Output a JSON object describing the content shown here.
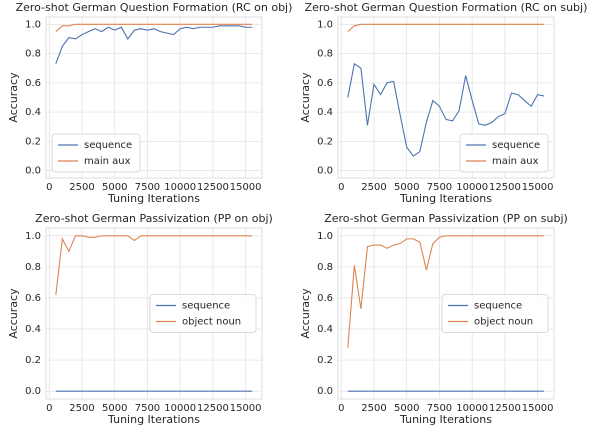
{
  "chart_data": [
    {
      "type": "line",
      "title": "Zero-shot German Question Formation (RC on obj)",
      "xlabel": "Tuning Iterations",
      "ylabel": "Accuracy",
      "x": [
        500,
        1000,
        1500,
        2000,
        2500,
        3000,
        3500,
        4000,
        4500,
        5000,
        5500,
        6000,
        6500,
        7000,
        7500,
        8000,
        8500,
        9000,
        9500,
        10000,
        10500,
        11000,
        11500,
        12000,
        12500,
        13000,
        13500,
        14000,
        14500,
        15000,
        15500
      ],
      "series": [
        {
          "name": "sequence",
          "color": "#4c72b0",
          "values": [
            0.73,
            0.85,
            0.91,
            0.9,
            0.93,
            0.95,
            0.97,
            0.95,
            0.98,
            0.96,
            0.98,
            0.9,
            0.96,
            0.97,
            0.96,
            0.97,
            0.95,
            0.94,
            0.93,
            0.97,
            0.98,
            0.97,
            0.98,
            0.98,
            0.98,
            0.99,
            0.99,
            0.99,
            0.99,
            0.98,
            0.98
          ]
        },
        {
          "name": "main aux",
          "color": "#dd8452",
          "values": [
            0.95,
            0.99,
            0.99,
            1.0,
            1.0,
            1.0,
            1.0,
            1.0,
            1.0,
            1.0,
            1.0,
            1.0,
            1.0,
            1.0,
            1.0,
            1.0,
            1.0,
            1.0,
            1.0,
            1.0,
            1.0,
            1.0,
            1.0,
            1.0,
            1.0,
            1.0,
            1.0,
            1.0,
            1.0,
            1.0,
            1.0
          ]
        }
      ],
      "xlim": [
        -250,
        16250
      ],
      "xticks": [
        0,
        2500,
        5000,
        7500,
        10000,
        12500,
        15000
      ],
      "ylim": [
        -0.05,
        1.05
      ],
      "yticks": [
        {
          "value": 0,
          "label": "0.0"
        },
        0.2,
        0.4,
        0.6,
        0.8,
        {
          "value": 1,
          "label": "1.0"
        }
      ],
      "grid": true,
      "legend": "lower left"
    },
    {
      "type": "line",
      "title": "Zero-shot German Question Formation (RC on subj)",
      "xlabel": "Tuning Iterations",
      "ylabel": "Accuracy",
      "x": [
        500,
        1000,
        1500,
        2000,
        2500,
        3000,
        3500,
        4000,
        4500,
        5000,
        5500,
        6000,
        6500,
        7000,
        7500,
        8000,
        8500,
        9000,
        9500,
        10000,
        10500,
        11000,
        11500,
        12000,
        12500,
        13000,
        13500,
        14000,
        14500,
        15000,
        15500
      ],
      "series": [
        {
          "name": "sequence",
          "color": "#4c72b0",
          "values": [
            0.5,
            0.73,
            0.7,
            0.31,
            0.59,
            0.52,
            0.6,
            0.61,
            0.38,
            0.16,
            0.1,
            0.13,
            0.33,
            0.48,
            0.44,
            0.35,
            0.34,
            0.41,
            0.65,
            0.48,
            0.32,
            0.31,
            0.33,
            0.37,
            0.39,
            0.53,
            0.52,
            0.48,
            0.44,
            0.52,
            0.51
          ]
        },
        {
          "name": "main aux",
          "color": "#dd8452",
          "values": [
            0.95,
            0.99,
            1.0,
            1.0,
            1.0,
            1.0,
            1.0,
            1.0,
            1.0,
            1.0,
            1.0,
            1.0,
            1.0,
            1.0,
            1.0,
            1.0,
            1.0,
            1.0,
            1.0,
            1.0,
            1.0,
            1.0,
            1.0,
            1.0,
            1.0,
            1.0,
            1.0,
            1.0,
            1.0,
            1.0,
            1.0
          ]
        }
      ],
      "xlim": [
        -250,
        16250
      ],
      "xticks": [
        0,
        2500,
        5000,
        7500,
        10000,
        12500,
        15000
      ],
      "ylim": [
        -0.05,
        1.05
      ],
      "yticks": [
        {
          "value": 0,
          "label": "0.0"
        },
        0.2,
        0.4,
        0.6,
        0.8,
        {
          "value": 1,
          "label": "1.0"
        }
      ],
      "grid": true,
      "legend": "lower right"
    },
    {
      "type": "line",
      "title": "Zero-shot German Passivization (PP on obj)",
      "xlabel": "Tuning Iterations",
      "ylabel": "Accuracy",
      "x": [
        500,
        1000,
        1500,
        2000,
        2500,
        3000,
        3500,
        4000,
        4500,
        5000,
        5500,
        6000,
        6500,
        7000,
        7500,
        8000,
        8500,
        9000,
        9500,
        10000,
        10500,
        11000,
        11500,
        12000,
        12500,
        13000,
        13500,
        14000,
        14500,
        15000,
        15500
      ],
      "series": [
        {
          "name": "sequence",
          "color": "#4c72b0",
          "values": [
            0,
            0,
            0,
            0,
            0,
            0,
            0,
            0,
            0,
            0,
            0,
            0,
            0,
            0,
            0,
            0,
            0,
            0,
            0,
            0,
            0,
            0,
            0,
            0,
            0,
            0,
            0,
            0,
            0,
            0,
            0
          ]
        },
        {
          "name": "object noun",
          "color": "#dd8452",
          "values": [
            0.62,
            0.98,
            0.9,
            1.0,
            1.0,
            0.99,
            0.99,
            1.0,
            1.0,
            1.0,
            1.0,
            1.0,
            0.97,
            1.0,
            1.0,
            1.0,
            1.0,
            1.0,
            1.0,
            1.0,
            1.0,
            1.0,
            1.0,
            1.0,
            1.0,
            1.0,
            1.0,
            1.0,
            1.0,
            1.0,
            1.0
          ]
        }
      ],
      "xlim": [
        -250,
        16250
      ],
      "xticks": [
        0,
        2500,
        5000,
        7500,
        10000,
        12500,
        15000
      ],
      "ylim": [
        -0.05,
        1.05
      ],
      "yticks": [
        {
          "value": 0,
          "label": "0.0"
        },
        0.2,
        0.4,
        0.6,
        0.8,
        {
          "value": 1,
          "label": "1.0"
        }
      ],
      "grid": true,
      "legend": "center right"
    },
    {
      "type": "line",
      "title": "Zero-shot German Passivization (PP on subj)",
      "xlabel": "Tuning Iterations",
      "ylabel": "Accuracy",
      "x": [
        500,
        1000,
        1500,
        2000,
        2500,
        3000,
        3500,
        4000,
        4500,
        5000,
        5500,
        6000,
        6500,
        7000,
        7500,
        8000,
        8500,
        9000,
        9500,
        10000,
        10500,
        11000,
        11500,
        12000,
        12500,
        13000,
        13500,
        14000,
        14500,
        15000,
        15500
      ],
      "series": [
        {
          "name": "sequence",
          "color": "#4c72b0",
          "values": [
            0,
            0,
            0,
            0,
            0,
            0,
            0,
            0,
            0,
            0,
            0,
            0,
            0,
            0,
            0,
            0,
            0,
            0,
            0,
            0,
            0,
            0,
            0,
            0,
            0,
            0,
            0,
            0,
            0,
            0,
            0
          ]
        },
        {
          "name": "object noun",
          "color": "#dd8452",
          "values": [
            0.28,
            0.81,
            0.53,
            0.93,
            0.94,
            0.94,
            0.92,
            0.94,
            0.95,
            0.98,
            0.98,
            0.96,
            0.78,
            0.95,
            0.99,
            1.0,
            1.0,
            1.0,
            1.0,
            1.0,
            1.0,
            1.0,
            1.0,
            1.0,
            1.0,
            1.0,
            1.0,
            1.0,
            1.0,
            1.0,
            1.0
          ]
        }
      ],
      "xlim": [
        -250,
        16250
      ],
      "xticks": [
        0,
        2500,
        5000,
        7500,
        10000,
        12500,
        15000
      ],
      "ylim": [
        -0.05,
        1.05
      ],
      "yticks": [
        {
          "value": 0,
          "label": "0.0"
        },
        0.2,
        0.4,
        0.6,
        0.8,
        {
          "value": 1,
          "label": "1.0"
        }
      ],
      "grid": true,
      "legend": "center right"
    }
  ]
}
